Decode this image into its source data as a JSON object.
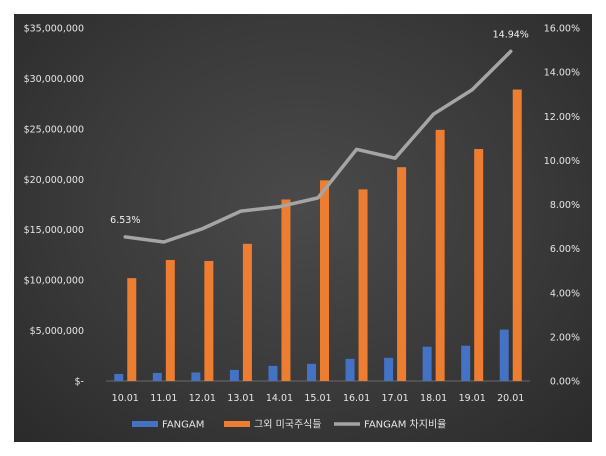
{
  "chart_data": {
    "type": "bar",
    "categories": [
      "10.01",
      "11.01",
      "12.01",
      "13.01",
      "14.01",
      "15.01",
      "16.01",
      "17.01",
      "18.01",
      "19.01",
      "20.01"
    ],
    "series": [
      {
        "name": "FANGAM",
        "axis": "left",
        "type": "bar",
        "color": "#4472c4",
        "values": [
          700000,
          800000,
          850000,
          1100000,
          1500000,
          1700000,
          2200000,
          2300000,
          3400000,
          3500000,
          5100000
        ]
      },
      {
        "name": "그외 미국주식들",
        "axis": "left",
        "type": "bar",
        "color": "#ed7d31",
        "values": [
          10200000,
          12000000,
          11900000,
          13600000,
          18000000,
          19900000,
          19000000,
          21200000,
          24900000,
          23000000,
          28900000
        ]
      },
      {
        "name": "FANGAM 차지비율",
        "axis": "right",
        "type": "line",
        "color": "#a5a5a5",
        "values": [
          6.53,
          6.3,
          6.9,
          7.7,
          7.9,
          8.3,
          10.5,
          10.1,
          12.1,
          13.2,
          14.94
        ]
      }
    ],
    "left_axis": {
      "ylim": [
        0,
        35000000
      ],
      "ticks": [
        0,
        5000000,
        10000000,
        15000000,
        20000000,
        25000000,
        30000000,
        35000000
      ],
      "tick_labels": [
        "$-",
        "$5,000,000",
        "$10,000,000",
        "$15,000,000",
        "$20,000,000",
        "$25,000,000",
        "$30,000,000",
        "$35,000,000"
      ]
    },
    "right_axis": {
      "ylim": [
        0,
        16
      ],
      "ticks": [
        0,
        2,
        4,
        6,
        8,
        10,
        12,
        14,
        16
      ],
      "tick_labels": [
        "0.00%",
        "2.00%",
        "4.00%",
        "6.00%",
        "8.00%",
        "10.00%",
        "12.00%",
        "14.00%",
        "16.00%"
      ]
    },
    "data_labels": [
      {
        "series": 2,
        "index": 0,
        "text": "6.53%"
      },
      {
        "series": 2,
        "index": 10,
        "text": "14.94%"
      }
    ],
    "legend": {
      "position": "bottom",
      "entries": [
        "FANGAM",
        "그외 미국주식들",
        "FANGAM 차지비율"
      ]
    },
    "grid": false,
    "title": ""
  }
}
